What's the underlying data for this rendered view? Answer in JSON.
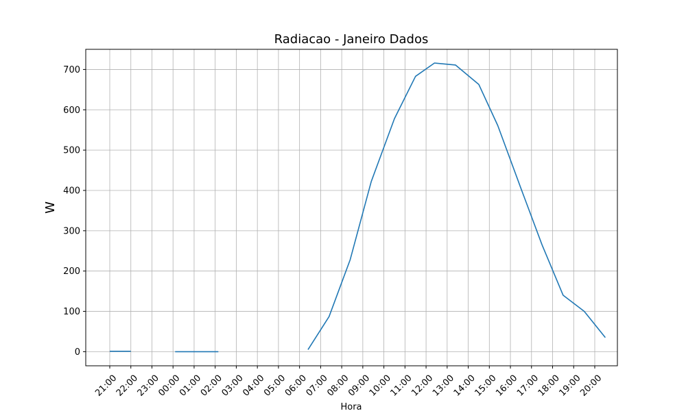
{
  "chart_data": {
    "type": "line",
    "title": "Radiacao - Janeiro Dados",
    "xlabel": "Hora",
    "ylabel": "W",
    "categories": [
      "21:00",
      "22:00",
      "23:00",
      "00:00",
      "01:00",
      "02:00",
      "03:00",
      "04:00",
      "05:00",
      "06:00",
      "07:00",
      "08:00",
      "09:00",
      "10:00",
      "11:00",
      "12:00",
      "13:00",
      "14:00",
      "15:00",
      "16:00",
      "17:00",
      "18:00",
      "19:00",
      "20:00"
    ],
    "ylim": [
      -35,
      750
    ],
    "yticks": [
      0,
      100,
      200,
      300,
      400,
      500,
      600,
      700
    ],
    "grid": true,
    "series_color": "#1f77b4",
    "segments": [
      {
        "x": [
          0.0,
          1.0
        ],
        "y": [
          1,
          1
        ]
      },
      {
        "x": [
          3.1,
          4.1,
          5.15
        ],
        "y": [
          0,
          0,
          0
        ]
      },
      {
        "x": [
          9.4,
          10.4,
          11.4,
          12.4,
          13.5,
          14.5,
          15.4,
          16.4,
          17.5,
          18.4,
          19.5,
          20.5,
          21.5,
          22.5,
          23.5
        ],
        "y": [
          5,
          87,
          228,
          422,
          578,
          683,
          716,
          711,
          663,
          561,
          405,
          265,
          140,
          100,
          35
        ]
      }
    ]
  }
}
